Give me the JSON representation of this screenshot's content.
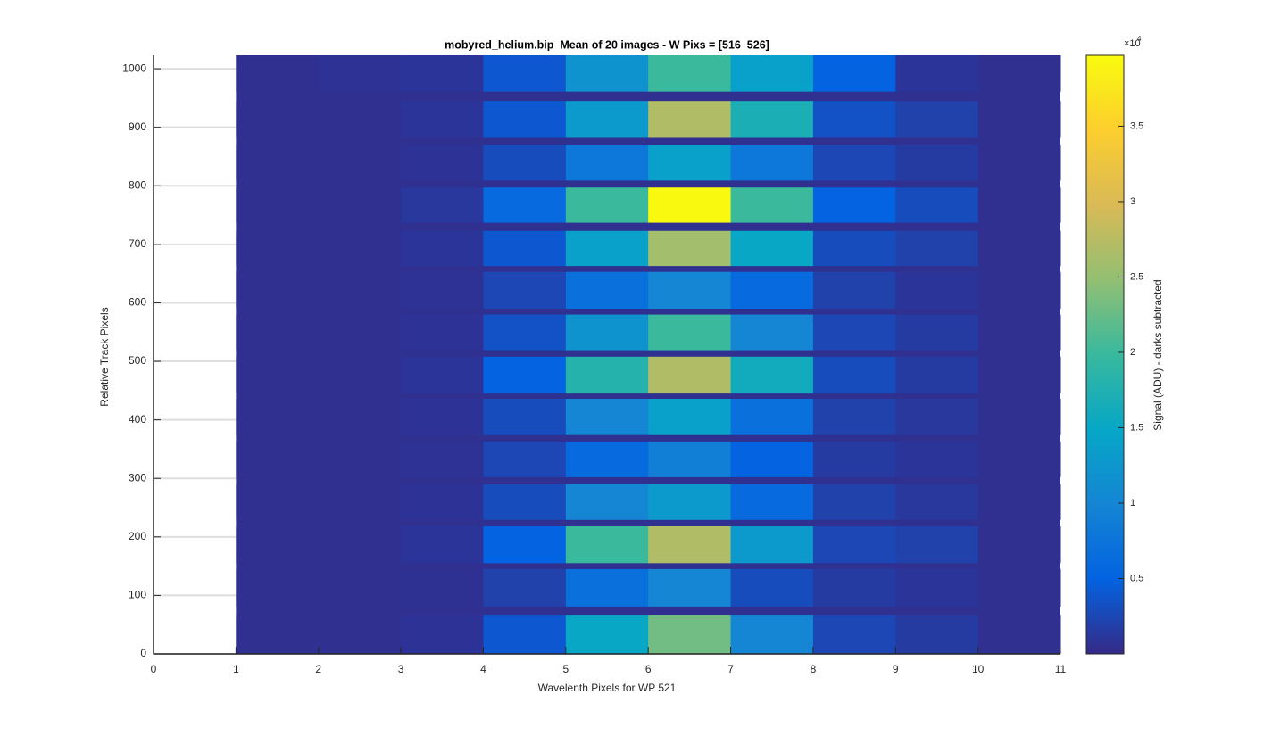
{
  "chart_data": {
    "type": "heatmap",
    "title": "mobyred_helium.bip  Mean of 20 images - W Pixs = [516  526]",
    "x_label": "Wavelenth Pixels for WP 521",
    "y_label": "Relative Track Pixels",
    "colorbar_label": "Signal (ADU) - darks subtracted",
    "colorbar_multiplier": "×10",
    "colorbar_exponent": "4",
    "xlim": [
      0,
      11
    ],
    "xticks": [
      0,
      1,
      2,
      3,
      4,
      5,
      6,
      7,
      8,
      9,
      10,
      11
    ],
    "ylim": [
      0,
      1023
    ],
    "yticks": [
      0,
      100,
      200,
      300,
      400,
      500,
      600,
      700,
      800,
      900,
      1000
    ],
    "clim": [
      0,
      3.97
    ],
    "cticks": [
      0.5,
      1,
      1.5,
      2,
      2.5,
      3,
      3.5
    ],
    "grid": "y",
    "colormap": [
      "#352a87",
      "#0363e1",
      "#1485d4",
      "#06a7c6",
      "#38b99e",
      "#92bf73",
      "#d9ba56",
      "#fcce2e",
      "#f9fb0e"
    ],
    "x_edges": [
      1,
      2,
      3,
      4,
      5,
      6,
      7,
      8,
      9,
      10,
      11
    ],
    "background_value": 0.05,
    "rows": [
      {
        "y": [
          0,
          67
        ],
        "values": [
          0.05,
          0.05,
          0.08,
          0.4,
          1.5,
          2.3,
          1.0,
          0.25,
          0.15,
          0.05
        ]
      },
      {
        "y": [
          81,
          145
        ],
        "values": [
          0.05,
          0.05,
          0.06,
          0.2,
          0.7,
          1.0,
          0.3,
          0.15,
          0.1,
          0.05
        ]
      },
      {
        "y": [
          155,
          218
        ],
        "values": [
          0.05,
          0.05,
          0.1,
          0.5,
          2.0,
          2.7,
          1.3,
          0.25,
          0.2,
          0.05
        ]
      },
      {
        "y": [
          229,
          290
        ],
        "values": [
          0.05,
          0.05,
          0.08,
          0.3,
          1.0,
          1.3,
          0.6,
          0.2,
          0.12,
          0.05
        ]
      },
      {
        "y": [
          302,
          363
        ],
        "values": [
          0.05,
          0.05,
          0.07,
          0.25,
          0.6,
          0.9,
          0.5,
          0.15,
          0.1,
          0.05
        ]
      },
      {
        "y": [
          374,
          436
        ],
        "values": [
          0.05,
          0.05,
          0.08,
          0.3,
          1.0,
          1.4,
          0.7,
          0.2,
          0.12,
          0.05
        ]
      },
      {
        "y": [
          445,
          508
        ],
        "values": [
          0.05,
          0.05,
          0.1,
          0.5,
          1.8,
          2.7,
          1.6,
          0.3,
          0.15,
          0.05
        ]
      },
      {
        "y": [
          519,
          580
        ],
        "values": [
          0.05,
          0.05,
          0.08,
          0.35,
          1.2,
          2.0,
          1.0,
          0.25,
          0.15,
          0.05
        ]
      },
      {
        "y": [
          590,
          653
        ],
        "values": [
          0.05,
          0.05,
          0.07,
          0.25,
          0.7,
          1.0,
          0.6,
          0.2,
          0.1,
          0.05
        ]
      },
      {
        "y": [
          663,
          723
        ],
        "values": [
          0.05,
          0.05,
          0.1,
          0.4,
          1.4,
          2.6,
          1.5,
          0.3,
          0.2,
          0.05
        ]
      },
      {
        "y": [
          737,
          797
        ],
        "values": [
          0.05,
          0.05,
          0.12,
          0.6,
          2.0,
          3.95,
          2.0,
          0.5,
          0.3,
          0.05
        ]
      },
      {
        "y": [
          809,
          870
        ],
        "values": [
          0.05,
          0.05,
          0.08,
          0.3,
          0.8,
          1.4,
          0.8,
          0.25,
          0.15,
          0.05
        ]
      },
      {
        "y": [
          882,
          945
        ],
        "values": [
          0.05,
          0.05,
          0.1,
          0.4,
          1.3,
          2.7,
          1.7,
          0.35,
          0.2,
          0.05
        ]
      },
      {
        "y": [
          961,
          1023
        ],
        "values": [
          0.05,
          0.07,
          0.1,
          0.4,
          1.2,
          2.0,
          1.4,
          0.5,
          0.1,
          0.05
        ]
      }
    ]
  }
}
